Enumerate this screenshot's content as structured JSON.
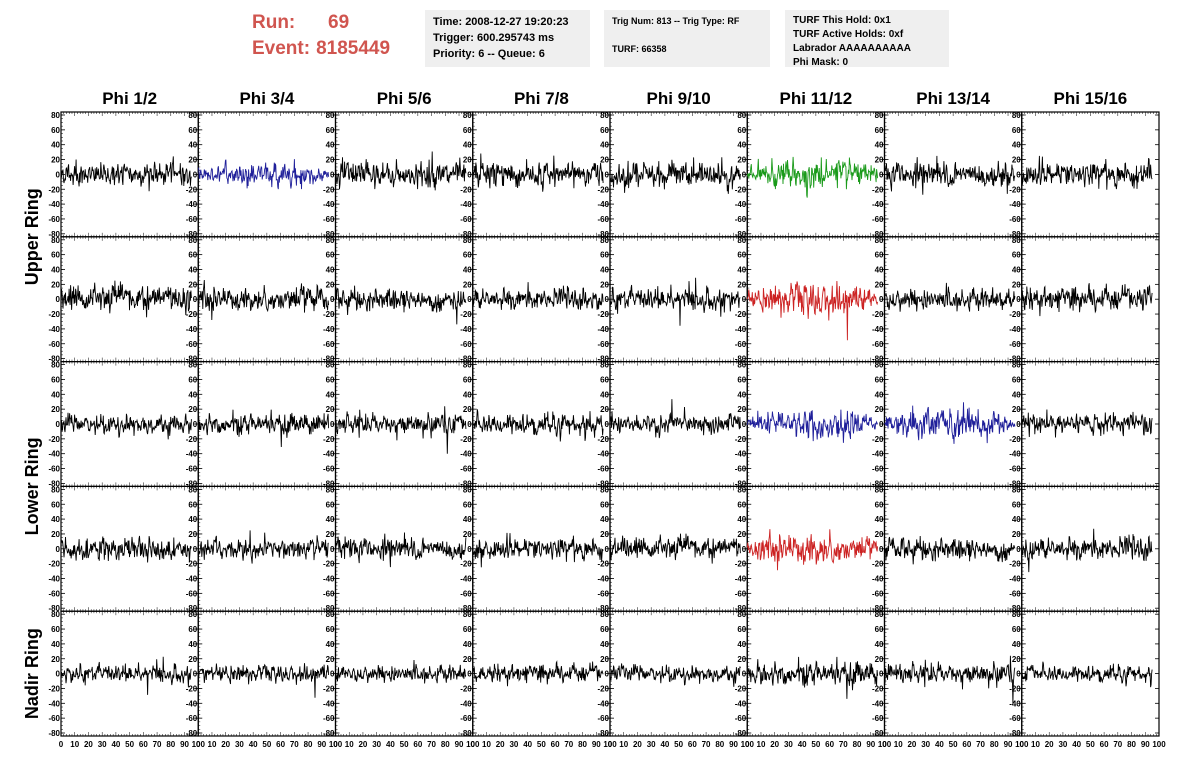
{
  "header": {
    "run_label": "Run:",
    "run_value": "69",
    "event_label": "Event:",
    "event_value": "8185449",
    "time": "Time: 2008-12-27 19:20:23",
    "trigger": "Trigger: 600.295743 ms",
    "priority": "Priority: 6 -- Queue: 6",
    "trig_num": "Trig Num: 813 -- Trig Type: RF",
    "turf": "TURF: 66358",
    "turf_this_hold": "TURF This Hold: 0x1",
    "turf_active_holds": "TURF Active Holds: 0xf",
    "labrador": "Labrador AAAAAAAAAA",
    "phi_mask": "Phi Mask: 0"
  },
  "colors": {
    "accent_text": "#d0554f",
    "info_bg": "#efefef",
    "trace_default": "#000000",
    "trace_blue": "#1f1f9a",
    "trace_green": "#1a9a1a",
    "trace_red": "#cc2222"
  },
  "chart_data": {
    "type": "line",
    "column_titles": [
      "Phi 1/2",
      "Phi 3/4",
      "Phi 5/6",
      "Phi 7/8",
      "Phi 9/10",
      "Phi 11/12",
      "Phi 13/14",
      "Phi 15/16"
    ],
    "ring_labels": [
      {
        "label": "Upper Ring",
        "rows": [
          0,
          1
        ]
      },
      {
        "label": "Lower Ring",
        "rows": [
          2,
          3
        ]
      },
      {
        "label": "Nadir Ring",
        "rows": [
          4
        ]
      }
    ],
    "ylim": [
      -80,
      80
    ],
    "xlim": [
      0,
      100
    ],
    "y_ticks": [
      "80",
      "60",
      "40",
      "20",
      "0",
      "-20",
      "-40",
      "-60",
      "-80"
    ],
    "x_ticks": [
      "0",
      "10",
      "20",
      "30",
      "40",
      "50",
      "60",
      "70",
      "80",
      "90",
      "100"
    ],
    "trace_x_range": [
      0,
      95
    ],
    "samples_per_trace": 260,
    "rows": [
      {
        "colors": [
          "black",
          "blue",
          "black",
          "black",
          "black",
          "green",
          "black",
          "black"
        ],
        "amplitudes": [
          14,
          15,
          16,
          16,
          16,
          18,
          16,
          16
        ]
      },
      {
        "colors": [
          "black",
          "black",
          "black",
          "black",
          "black",
          "red",
          "black",
          "black"
        ],
        "amplitudes": [
          17,
          16,
          14,
          14,
          15,
          19,
          14,
          16
        ]
      },
      {
        "colors": [
          "black",
          "black",
          "black",
          "black",
          "black",
          "blue",
          "blue",
          "black"
        ],
        "amplitudes": [
          13,
          14,
          14,
          14,
          12,
          17,
          19,
          13
        ]
      },
      {
        "colors": [
          "black",
          "black",
          "black",
          "black",
          "black",
          "red",
          "black",
          "black"
        ],
        "amplitudes": [
          15,
          13,
          14,
          14,
          14,
          19,
          14,
          15
        ]
      },
      {
        "colors": [
          "black",
          "black",
          "black",
          "black",
          "black",
          "black",
          "black",
          "black"
        ],
        "amplitudes": [
          12,
          11,
          11,
          12,
          11,
          16,
          14,
          11
        ]
      }
    ]
  }
}
